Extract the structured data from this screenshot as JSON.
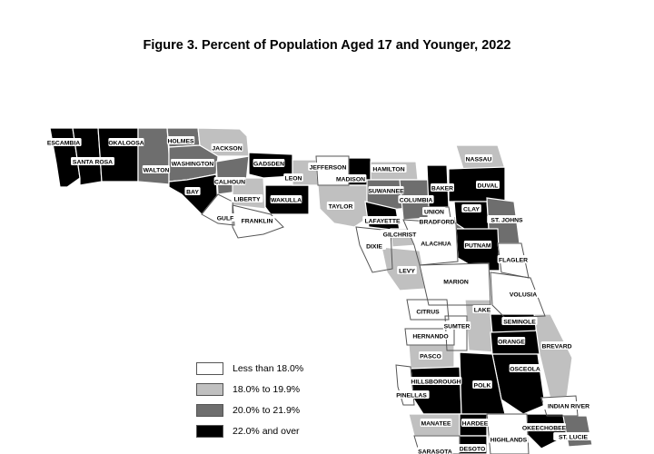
{
  "title": "Figure 3. Percent of Population Aged 17 and Younger, 2022",
  "colors": {
    "c0": "#ffffff",
    "c1": "#c0c0c0",
    "c2": "#6e6e6e",
    "c3": "#000000",
    "border": "#555555"
  },
  "legend": [
    {
      "label": "Less than 18.0%",
      "color": "#ffffff"
    },
    {
      "label": "18.0% to 19.9%",
      "color": "#c0c0c0"
    },
    {
      "label": "20.0% to 21.9%",
      "color": "#6e6e6e"
    },
    {
      "label": "22.0% and over",
      "color": "#000000"
    }
  ],
  "counties": [
    {
      "name": "ESCAMBIA",
      "class": "22.0% and over"
    },
    {
      "name": "SANTA ROSA",
      "class": "22.0% and over"
    },
    {
      "name": "OKALOOSA",
      "class": "22.0% and over"
    },
    {
      "name": "WALTON",
      "class": "20.0% to 21.9%"
    },
    {
      "name": "HOLMES",
      "class": "20.0% to 21.9%"
    },
    {
      "name": "WASHINGTON",
      "class": "20.0% to 21.9%"
    },
    {
      "name": "JACKSON",
      "class": "18.0% to 19.9%"
    },
    {
      "name": "BAY",
      "class": "22.0% and over"
    },
    {
      "name": "CALHOUN",
      "class": "20.0% to 21.9%"
    },
    {
      "name": "GULF",
      "class": "Less than 18.0%"
    },
    {
      "name": "LIBERTY",
      "class": "18.0% to 19.9%"
    },
    {
      "name": "FRANKLIN",
      "class": "Less than 18.0%"
    },
    {
      "name": "GADSDEN",
      "class": "22.0% and over"
    },
    {
      "name": "WAKULLA",
      "class": "22.0% and over"
    },
    {
      "name": "LEON",
      "class": "18.0% to 19.9%"
    },
    {
      "name": "JEFFERSON",
      "class": "Less than 18.0%"
    },
    {
      "name": "MADISON",
      "class": "22.0% and over"
    },
    {
      "name": "TAYLOR",
      "class": "18.0% to 19.9%"
    },
    {
      "name": "HAMILTON",
      "class": "18.0% to 19.9%"
    },
    {
      "name": "SUWANNEE",
      "class": "20.0% to 21.9%"
    },
    {
      "name": "LAFAYETTE",
      "class": "22.0% and over"
    },
    {
      "name": "COLUMBIA",
      "class": "20.0% to 21.9%"
    },
    {
      "name": "BAKER",
      "class": "22.0% and over"
    },
    {
      "name": "UNION",
      "class": "Less than 18.0%"
    },
    {
      "name": "BRADFORD",
      "class": "20.0% to 21.9%"
    },
    {
      "name": "NASSAU",
      "class": "18.0% to 19.9%"
    },
    {
      "name": "DUVAL",
      "class": "22.0% and over"
    },
    {
      "name": "CLAY",
      "class": "22.0% and over"
    },
    {
      "name": "ST. JOHNS",
      "class": "20.0% to 21.9%"
    },
    {
      "name": "PUTNAM",
      "class": "22.0% and over"
    },
    {
      "name": "FLAGLER",
      "class": "Less than 18.0%"
    },
    {
      "name": "DIXIE",
      "class": "Less than 18.0%"
    },
    {
      "name": "GILCHRIST",
      "class": "18.0% to 19.9%"
    },
    {
      "name": "ALACHUA",
      "class": "Less than 18.0%"
    },
    {
      "name": "LEVY",
      "class": "18.0% to 19.9%"
    },
    {
      "name": "MARION",
      "class": "Less than 18.0%"
    },
    {
      "name": "VOLUSIA",
      "class": "Less than 18.0%"
    },
    {
      "name": "LAKE",
      "class": "18.0% to 19.9%"
    },
    {
      "name": "CITRUS",
      "class": "Less than 18.0%"
    },
    {
      "name": "SUMTER",
      "class": "Less than 18.0%"
    },
    {
      "name": "SEMINOLE",
      "class": "22.0% and over"
    },
    {
      "name": "HERNANDO",
      "class": "Less than 18.0%"
    },
    {
      "name": "ORANGE",
      "class": "22.0% and over"
    },
    {
      "name": "BREVARD",
      "class": "18.0% to 19.9%"
    },
    {
      "name": "PASCO",
      "class": "18.0% to 19.9%"
    },
    {
      "name": "OSCEOLA",
      "class": "22.0% and over"
    },
    {
      "name": "HILLSBOROUGH",
      "class": "22.0% and over"
    },
    {
      "name": "PINELLAS",
      "class": "Less than 18.0%"
    },
    {
      "name": "POLK",
      "class": "22.0% and over"
    },
    {
      "name": "INDIAN RIVER",
      "class": "Less than 18.0%"
    },
    {
      "name": "MANATEE",
      "class": "18.0% to 19.9%"
    },
    {
      "name": "HARDEE",
      "class": "22.0% and over"
    },
    {
      "name": "OKEECHOBEE",
      "class": "22.0% and over"
    },
    {
      "name": "HIGHLANDS",
      "class": "Less than 18.0%"
    },
    {
      "name": "ST. LUCIE",
      "class": "20.0% to 21.9%"
    },
    {
      "name": "SARASOTA",
      "class": "Less than 18.0%"
    },
    {
      "name": "DESOTO",
      "class": "22.0% and over"
    }
  ]
}
